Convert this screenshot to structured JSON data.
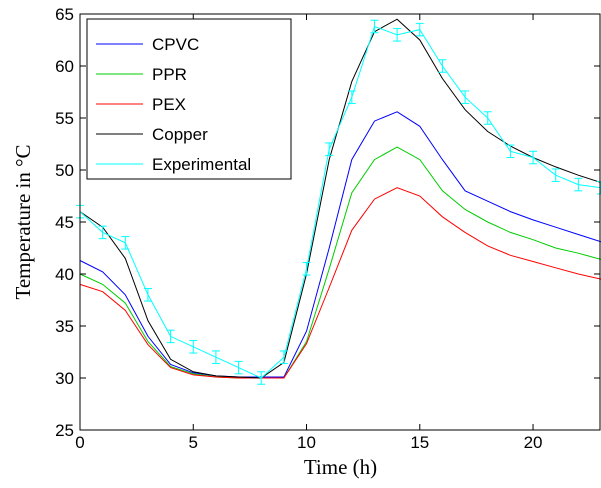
{
  "chart_data": {
    "type": "line",
    "title": "",
    "xlabel": "Time (h)",
    "ylabel": "Temperature in °C",
    "xlim": [
      0,
      23
    ],
    "ylim": [
      25,
      65
    ],
    "xticks": [
      0,
      5,
      10,
      15,
      20
    ],
    "yticks": [
      25,
      30,
      35,
      40,
      45,
      50,
      55,
      60,
      65
    ],
    "grid": false,
    "legend_position": "top-left",
    "x": [
      0,
      1,
      2,
      3,
      4,
      5,
      6,
      7,
      8,
      9,
      10,
      11,
      12,
      13,
      14,
      15,
      16,
      17,
      18,
      19,
      20,
      21,
      22,
      23
    ],
    "series": [
      {
        "name": "CPVC",
        "color": "#0000ff",
        "values": [
          41.3,
          40.2,
          38.0,
          34.0,
          31.3,
          30.5,
          30.2,
          30.1,
          30.1,
          30.1,
          34.5,
          42.5,
          51.0,
          54.7,
          55.6,
          54.2,
          51.0,
          48.0,
          47.0,
          46.0,
          45.2,
          44.5,
          43.8,
          43.1
        ]
      },
      {
        "name": "PPR",
        "color": "#00cc00",
        "values": [
          40.0,
          39.0,
          37.2,
          33.5,
          31.1,
          30.4,
          30.1,
          30.0,
          30.0,
          30.0,
          33.5,
          40.5,
          47.8,
          51.0,
          52.2,
          51.0,
          48.0,
          46.2,
          45.0,
          44.0,
          43.3,
          42.5,
          42.0,
          41.4
        ]
      },
      {
        "name": "PEX",
        "color": "#ff0000",
        "values": [
          39.0,
          38.3,
          36.5,
          33.2,
          31.0,
          30.3,
          30.1,
          30.0,
          30.0,
          30.0,
          33.3,
          38.7,
          44.2,
          47.2,
          48.3,
          47.5,
          45.5,
          44.0,
          42.7,
          41.8,
          41.2,
          40.6,
          40.0,
          39.5
        ]
      },
      {
        "name": "Copper",
        "color": "#000000",
        "values": [
          46.0,
          44.5,
          41.5,
          35.5,
          31.8,
          30.6,
          30.2,
          30.1,
          30.0,
          31.5,
          40.0,
          51.0,
          58.5,
          63.3,
          64.5,
          62.5,
          58.8,
          55.8,
          53.7,
          52.3,
          51.2,
          50.3,
          49.5,
          48.8
        ]
      },
      {
        "name": "Experimental",
        "color": "#00ffff",
        "values": [
          46.0,
          44.0,
          43.0,
          38.0,
          34.0,
          33.0,
          32.0,
          31.0,
          30.0,
          32.0,
          40.5,
          52.0,
          57.0,
          63.8,
          63.0,
          63.5,
          60.0,
          57.0,
          55.0,
          51.8,
          51.2,
          49.5,
          48.6,
          48.3
        ],
        "error_bars": true
      }
    ]
  }
}
